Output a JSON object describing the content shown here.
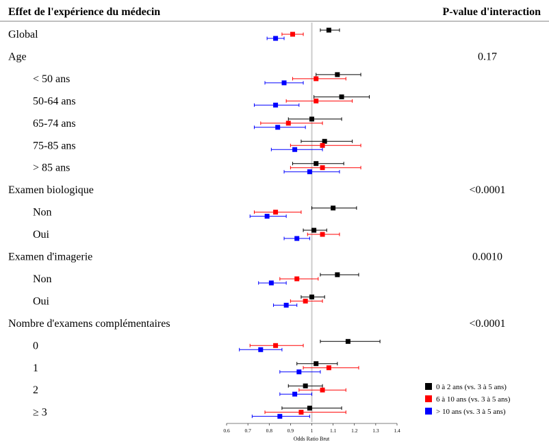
{
  "chart_data": {
    "type": "forest",
    "title": "Effet de l'expérience du médecin",
    "pvalue_header": "P-value d'interaction",
    "xlabel": "Odds Ratio Brut",
    "xlim": [
      0.6,
      1.4
    ],
    "xticks": [
      "0.6",
      "0.7",
      "0.8",
      "0.9",
      "1",
      "1.1",
      "1.2",
      "1.3",
      "1.4"
    ],
    "reference_line": 1.0,
    "series": [
      {
        "name": "0 à 2 ans (vs. 3 à 5 ans)",
        "color": "#000000"
      },
      {
        "name": "6 à 10 ans (vs. 3 à 5 ans)",
        "color": "#ff0000"
      },
      {
        "name": "> 10 ans (vs. 3 à 5 ans)",
        "color": "#0000ff"
      }
    ],
    "rows": [
      {
        "label": "Global",
        "indent": false,
        "pvalue": "",
        "est": [
          [
            1.08,
            1.04,
            1.13
          ],
          [
            0.91,
            0.86,
            0.96
          ],
          [
            0.83,
            0.79,
            0.87
          ]
        ]
      },
      {
        "label": "Age",
        "indent": false,
        "pvalue": "0.17",
        "est": null
      },
      {
        "label": "< 50 ans",
        "indent": true,
        "pvalue": "",
        "est": [
          [
            1.12,
            1.02,
            1.23
          ],
          [
            1.02,
            0.91,
            1.16
          ],
          [
            0.87,
            0.78,
            0.96
          ]
        ]
      },
      {
        "label": "50-64 ans",
        "indent": true,
        "pvalue": "",
        "est": [
          [
            1.14,
            1.01,
            1.27
          ],
          [
            1.02,
            0.88,
            1.19
          ],
          [
            0.83,
            0.73,
            0.94
          ]
        ]
      },
      {
        "label": "65-74 ans",
        "indent": true,
        "pvalue": "",
        "est": [
          [
            1.0,
            0.89,
            1.14
          ],
          [
            0.89,
            0.76,
            1.05
          ],
          [
            0.84,
            0.73,
            0.97
          ]
        ]
      },
      {
        "label": "75-85 ans",
        "indent": true,
        "pvalue": "",
        "est": [
          [
            1.06,
            0.95,
            1.19
          ],
          [
            1.05,
            0.9,
            1.23
          ],
          [
            0.92,
            0.81,
            1.05
          ]
        ]
      },
      {
        "label": "> 85 ans",
        "indent": true,
        "pvalue": "",
        "est": [
          [
            1.02,
            0.91,
            1.15
          ],
          [
            1.05,
            0.9,
            1.23
          ],
          [
            0.99,
            0.87,
            1.13
          ]
        ]
      },
      {
        "label": "Examen biologique",
        "indent": false,
        "pvalue": "<0.0001",
        "est": null
      },
      {
        "label": "Non",
        "indent": true,
        "pvalue": "",
        "est": [
          [
            1.1,
            1.0,
            1.21
          ],
          [
            0.83,
            0.73,
            0.95
          ],
          [
            0.79,
            0.71,
            0.88
          ]
        ]
      },
      {
        "label": "Oui",
        "indent": true,
        "pvalue": "",
        "est": [
          [
            1.01,
            0.96,
            1.07
          ],
          [
            1.05,
            0.98,
            1.13
          ],
          [
            0.93,
            0.87,
            0.99
          ]
        ]
      },
      {
        "label": "Examen d'imagerie",
        "indent": false,
        "pvalue": "0.0010",
        "est": null
      },
      {
        "label": "Non",
        "indent": true,
        "pvalue": "",
        "est": [
          [
            1.12,
            1.04,
            1.22
          ],
          [
            0.93,
            0.85,
            1.03
          ],
          [
            0.81,
            0.75,
            0.88
          ]
        ]
      },
      {
        "label": "Oui",
        "indent": true,
        "pvalue": "",
        "est": [
          [
            1.0,
            0.95,
            1.06
          ],
          [
            0.97,
            0.9,
            1.05
          ],
          [
            0.88,
            0.82,
            0.93
          ]
        ]
      },
      {
        "label": "Nombre d'examens complémentaires",
        "indent": false,
        "pvalue": "<0.0001",
        "est": null
      },
      {
        "label": "0",
        "indent": true,
        "pvalue": "",
        "est": [
          [
            1.17,
            1.04,
            1.32
          ],
          [
            0.83,
            0.71,
            0.96
          ],
          [
            0.76,
            0.66,
            0.86
          ]
        ]
      },
      {
        "label": "1",
        "indent": true,
        "pvalue": "",
        "est": [
          [
            1.02,
            0.93,
            1.12
          ],
          [
            1.08,
            0.96,
            1.22
          ],
          [
            0.94,
            0.85,
            1.04
          ]
        ]
      },
      {
        "label": "2",
        "indent": true,
        "pvalue": "",
        "est": [
          [
            0.97,
            0.89,
            1.05
          ],
          [
            1.05,
            0.94,
            1.16
          ],
          [
            0.92,
            0.85,
            1.0
          ]
        ]
      },
      {
        "label": "≥ 3",
        "indent": true,
        "pvalue": "",
        "est": [
          [
            0.99,
            0.86,
            1.14
          ],
          [
            0.95,
            0.78,
            1.16
          ],
          [
            0.85,
            0.72,
            0.99
          ]
        ]
      }
    ]
  }
}
